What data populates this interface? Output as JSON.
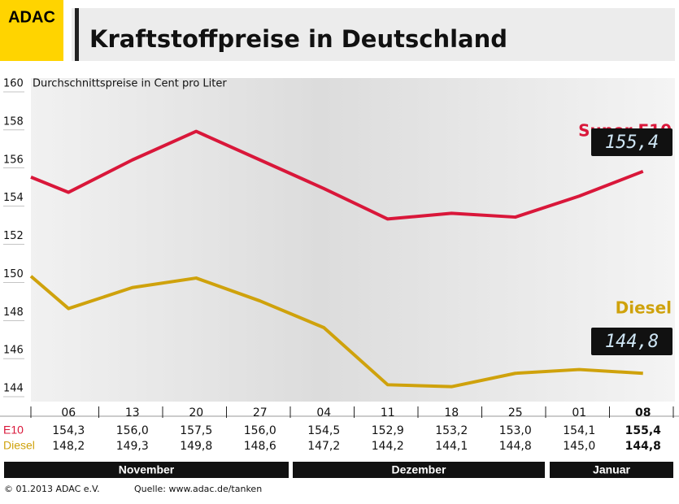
{
  "chart_data": {
    "type": "line",
    "brand": "ADAC",
    "title": "Kraftstoffpreise in Deutschland",
    "subtitle": "Durchschnittspreise in Cent pro Liter",
    "categories": [
      null,
      "06",
      "13",
      "20",
      "27",
      "04",
      "11",
      "18",
      "25",
      "01",
      "08"
    ],
    "series": [
      {
        "name": "Super E10",
        "row_label": "E10",
        "color": "#d9173a",
        "values": [
          155.1,
          154.3,
          156.0,
          157.5,
          156.0,
          154.5,
          152.9,
          153.2,
          153.0,
          154.1,
          155.4
        ],
        "value_labels": [
          null,
          "154,3",
          "156,0",
          "157,5",
          "156,0",
          "154,5",
          "152,9",
          "153,2",
          "153,0",
          "154,1",
          "155,4"
        ]
      },
      {
        "name": "Diesel",
        "row_label": "Diesel",
        "color": "#cfa20c",
        "values": [
          149.9,
          148.2,
          149.3,
          149.8,
          148.6,
          147.2,
          144.2,
          144.1,
          144.8,
          145.0,
          144.8
        ],
        "value_labels": [
          null,
          "148,2",
          "149,3",
          "149,8",
          "148,6",
          "147,2",
          "144,2",
          "144,1",
          "144,8",
          "145,0",
          "144,8"
        ]
      }
    ],
    "months": [
      "November",
      "Dezember",
      "Januar"
    ],
    "ylim": [
      144,
      160
    ],
    "yticks": [
      144,
      146,
      148,
      150,
      152,
      154,
      156,
      158,
      160
    ],
    "footer": "© 01.2013  ADAC e.V.",
    "source": "Quelle: www.adac.de/tanken"
  }
}
